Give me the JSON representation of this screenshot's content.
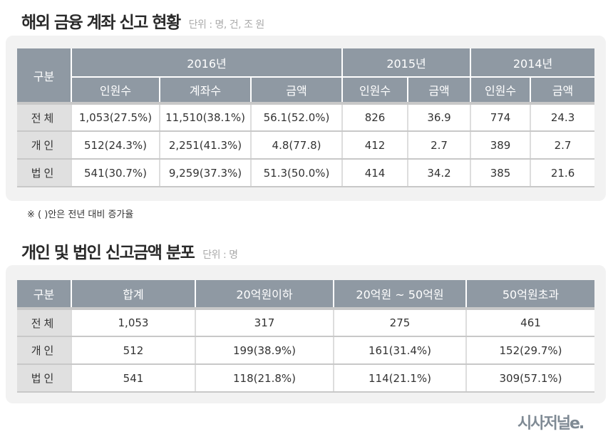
{
  "section1": {
    "title": "해외 금융 계좌 신고 현황",
    "unit": "단위 : 명, 건, 조 원",
    "header_label": "구분",
    "years": [
      "2016년",
      "2015년",
      "2014년"
    ],
    "subheaders": [
      "인원수",
      "계좌수",
      "금액",
      "인원수",
      "금액",
      "인원수",
      "금액"
    ],
    "rows": [
      {
        "label": "전체",
        "cells": [
          "1,053(27.5%)",
          "11,510(38.1%)",
          "56.1(52.0%)",
          "826",
          "36.9",
          "774",
          "24.3"
        ]
      },
      {
        "label": "개인",
        "cells": [
          "512(24.3%)",
          "2,251(41.3%)",
          "4.8(77.8)",
          "412",
          "2.7",
          "389",
          "2.7"
        ]
      },
      {
        "label": "법인",
        "cells": [
          "541(30.7%)",
          "9,259(37.3%)",
          "51.3(50.0%)",
          "414",
          "34.2",
          "385",
          "21.6"
        ]
      }
    ],
    "note": "※ ( )안은 전년 대비 증가율"
  },
  "section2": {
    "title": "개인 및 법인 신고금액 분포",
    "unit": "단위 : 명",
    "headers": [
      "구분",
      "합계",
      "20억원이하",
      "20억원 ~ 50억원",
      "50억원초과"
    ],
    "rows": [
      {
        "label": "전체",
        "cells": [
          "1,053",
          "317",
          "275",
          "461"
        ]
      },
      {
        "label": "개인",
        "cells": [
          "512",
          "199(38.9%)",
          "161(31.4%)",
          "152(29.7%)"
        ]
      },
      {
        "label": "법인",
        "cells": [
          "541",
          "118(21.8%)",
          "114(21.1%)",
          "309(57.1%)"
        ]
      }
    ]
  },
  "logo": "시사저널e."
}
